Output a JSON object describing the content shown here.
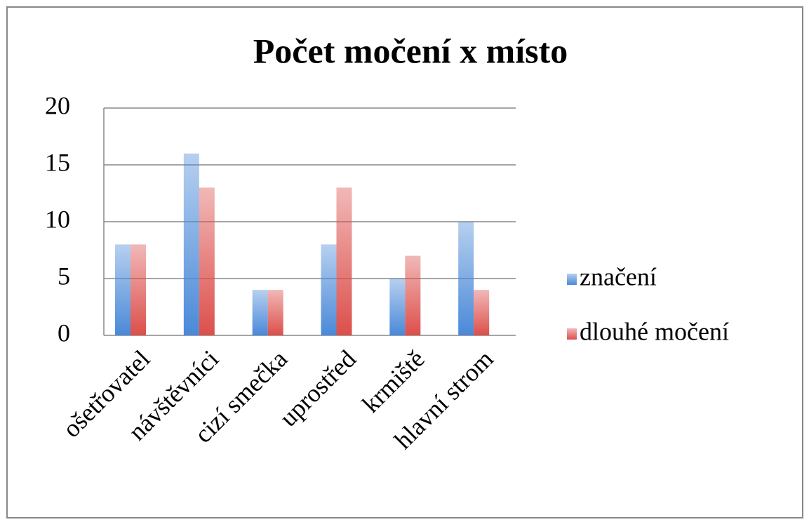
{
  "chart_data": {
    "type": "bar",
    "title": "Počet močení x místo",
    "categories": [
      "ošetřovatel",
      "návštěvníci",
      "cizí smečka",
      "uprostřed",
      "krmiště",
      "hlavní strom"
    ],
    "series": [
      {
        "name": "značení",
        "color": "#4a89d8",
        "values": [
          8,
          16,
          4,
          8,
          5,
          10
        ]
      },
      {
        "name": "dlouhé močení",
        "color": "#dc4f4b",
        "values": [
          8,
          13,
          4,
          13,
          7,
          4
        ]
      }
    ],
    "ylim": [
      0,
      20
    ],
    "yticks": [
      0,
      5,
      10,
      15,
      20
    ],
    "grid": true,
    "legend": "right"
  }
}
